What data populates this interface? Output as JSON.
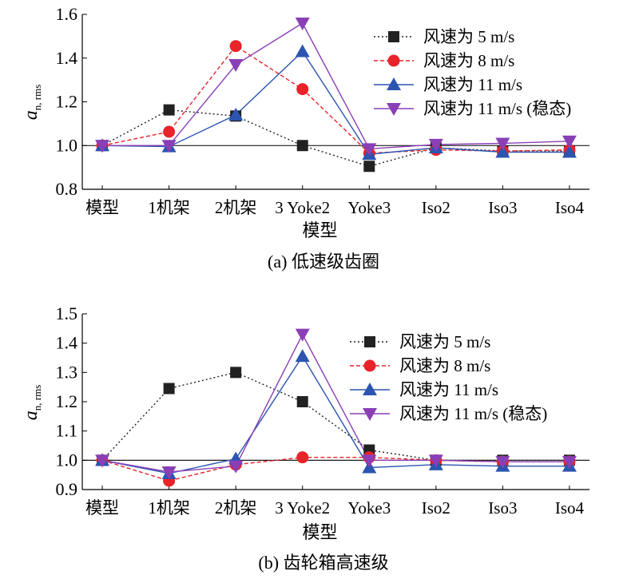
{
  "chart_data": [
    {
      "type": "line",
      "caption": "(a) 低速级齿圈",
      "ylabel_main": "a",
      "ylabel_sub": "n, rms",
      "xlabel": "模型",
      "categories": [
        "模型",
        "1机架",
        "2机架",
        "3 Yoke2",
        "Yoke3",
        "Iso2",
        "Iso3",
        "Iso4"
      ],
      "ylim": [
        0.8,
        1.6
      ],
      "yticks": [
        "0.8",
        "1.0",
        "1.2",
        "1.4",
        "1.6"
      ],
      "reference_line": 1.0,
      "legend_position": "top-right",
      "series": [
        {
          "name": "风速为 5 m/s",
          "color": "#222222",
          "marker": "square",
          "line": "dotted",
          "values": [
            1.0,
            1.163,
            1.135,
            1.0,
            0.905,
            0.99,
            0.975,
            0.975
          ]
        },
        {
          "name": "风速为 8 m/s",
          "color": "#e8232a",
          "marker": "circle",
          "line": "dashed",
          "values": [
            1.0,
            1.063,
            1.455,
            1.258,
            0.965,
            0.98,
            0.975,
            0.98
          ]
        },
        {
          "name": "风速为 11 m/s",
          "color": "#2b55b0",
          "marker": "triangle-up",
          "line": "solid",
          "values": [
            1.0,
            0.995,
            1.14,
            1.43,
            0.96,
            0.99,
            0.97,
            0.97
          ]
        },
        {
          "name": "风速为 11 m/s (稳态)",
          "color": "#8a3fb6",
          "marker": "triangle-down",
          "line": "solid",
          "values": [
            1.0,
            1.0,
            1.37,
            1.56,
            0.985,
            1.005,
            1.01,
            1.02
          ]
        }
      ]
    },
    {
      "type": "line",
      "caption": "(b) 齿轮箱高速级",
      "ylabel_main": "a",
      "ylabel_sub": "n, rms",
      "xlabel": "模型",
      "categories": [
        "模型",
        "1机架",
        "2机架",
        "3 Yoke2",
        "Yoke3",
        "Iso2",
        "Iso3",
        "Iso4"
      ],
      "ylim": [
        0.9,
        1.5
      ],
      "yticks": [
        "0.9",
        "1.0",
        "1.1",
        "1.2",
        "1.3",
        "1.4",
        "1.5"
      ],
      "reference_line": 1.0,
      "legend_position": "top-right",
      "series": [
        {
          "name": "风速为 5 m/s",
          "color": "#222222",
          "marker": "square",
          "line": "dotted",
          "values": [
            1.0,
            1.245,
            1.3,
            1.2,
            1.035,
            1.0,
            1.0,
            1.0
          ]
        },
        {
          "name": "风速为 8 m/s",
          "color": "#e8232a",
          "marker": "circle",
          "line": "dashed",
          "values": [
            1.0,
            0.93,
            0.985,
            1.01,
            1.01,
            1.0,
            0.995,
            0.995
          ]
        },
        {
          "name": "风速为 11 m/s",
          "color": "#2b55b0",
          "marker": "triangle-up",
          "line": "solid",
          "values": [
            1.0,
            0.955,
            1.005,
            1.355,
            0.975,
            0.985,
            0.98,
            0.98
          ]
        },
        {
          "name": "风速为 11 m/s (稳态)",
          "color": "#8a3fb6",
          "marker": "triangle-down",
          "line": "solid",
          "values": [
            1.0,
            0.96,
            0.98,
            1.43,
            1.0,
            1.0,
            0.995,
            0.995
          ]
        }
      ]
    }
  ]
}
